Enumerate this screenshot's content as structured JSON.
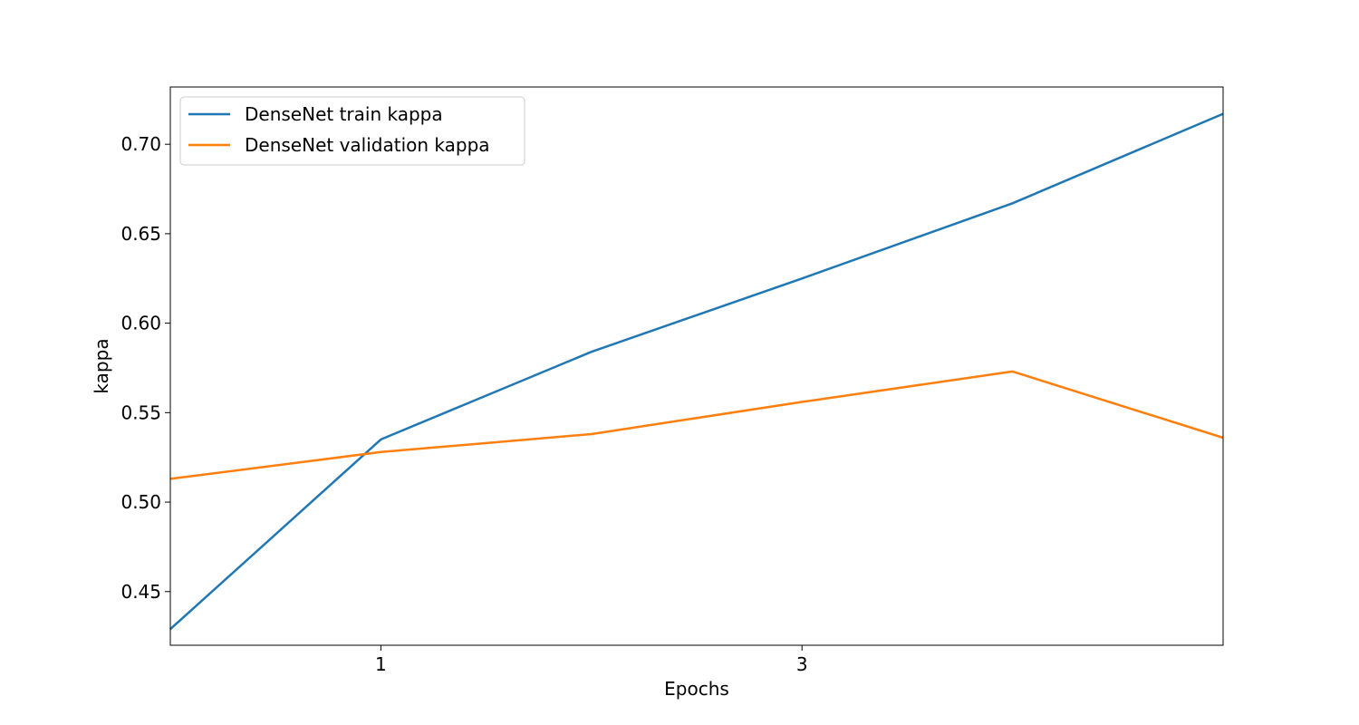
{
  "chart_data": {
    "type": "line",
    "title": "",
    "xlabel": "Epochs",
    "ylabel": "kappa",
    "x": [
      0,
      1,
      2,
      3,
      4,
      5
    ],
    "xlim": [
      0,
      5
    ],
    "ylim": [
      0.42,
      0.732
    ],
    "xticks": [
      1,
      3
    ],
    "xtick_labels": [
      "1",
      "3"
    ],
    "yticks": [
      0.45,
      0.5,
      0.55,
      0.6,
      0.65,
      0.7
    ],
    "ytick_labels": [
      "0.45",
      "0.50",
      "0.55",
      "0.60",
      "0.65",
      "0.70"
    ],
    "grid": false,
    "legend_position": "top-left",
    "series": [
      {
        "name": "DenseNet train kappa",
        "color": "#1f77b4",
        "values": [
          0.429,
          0.535,
          0.584,
          0.625,
          0.667,
          0.717
        ]
      },
      {
        "name": "DenseNet validation kappa",
        "color": "#ff7f0e",
        "values": [
          0.513,
          0.528,
          0.538,
          0.556,
          0.573,
          0.536
        ]
      }
    ]
  }
}
